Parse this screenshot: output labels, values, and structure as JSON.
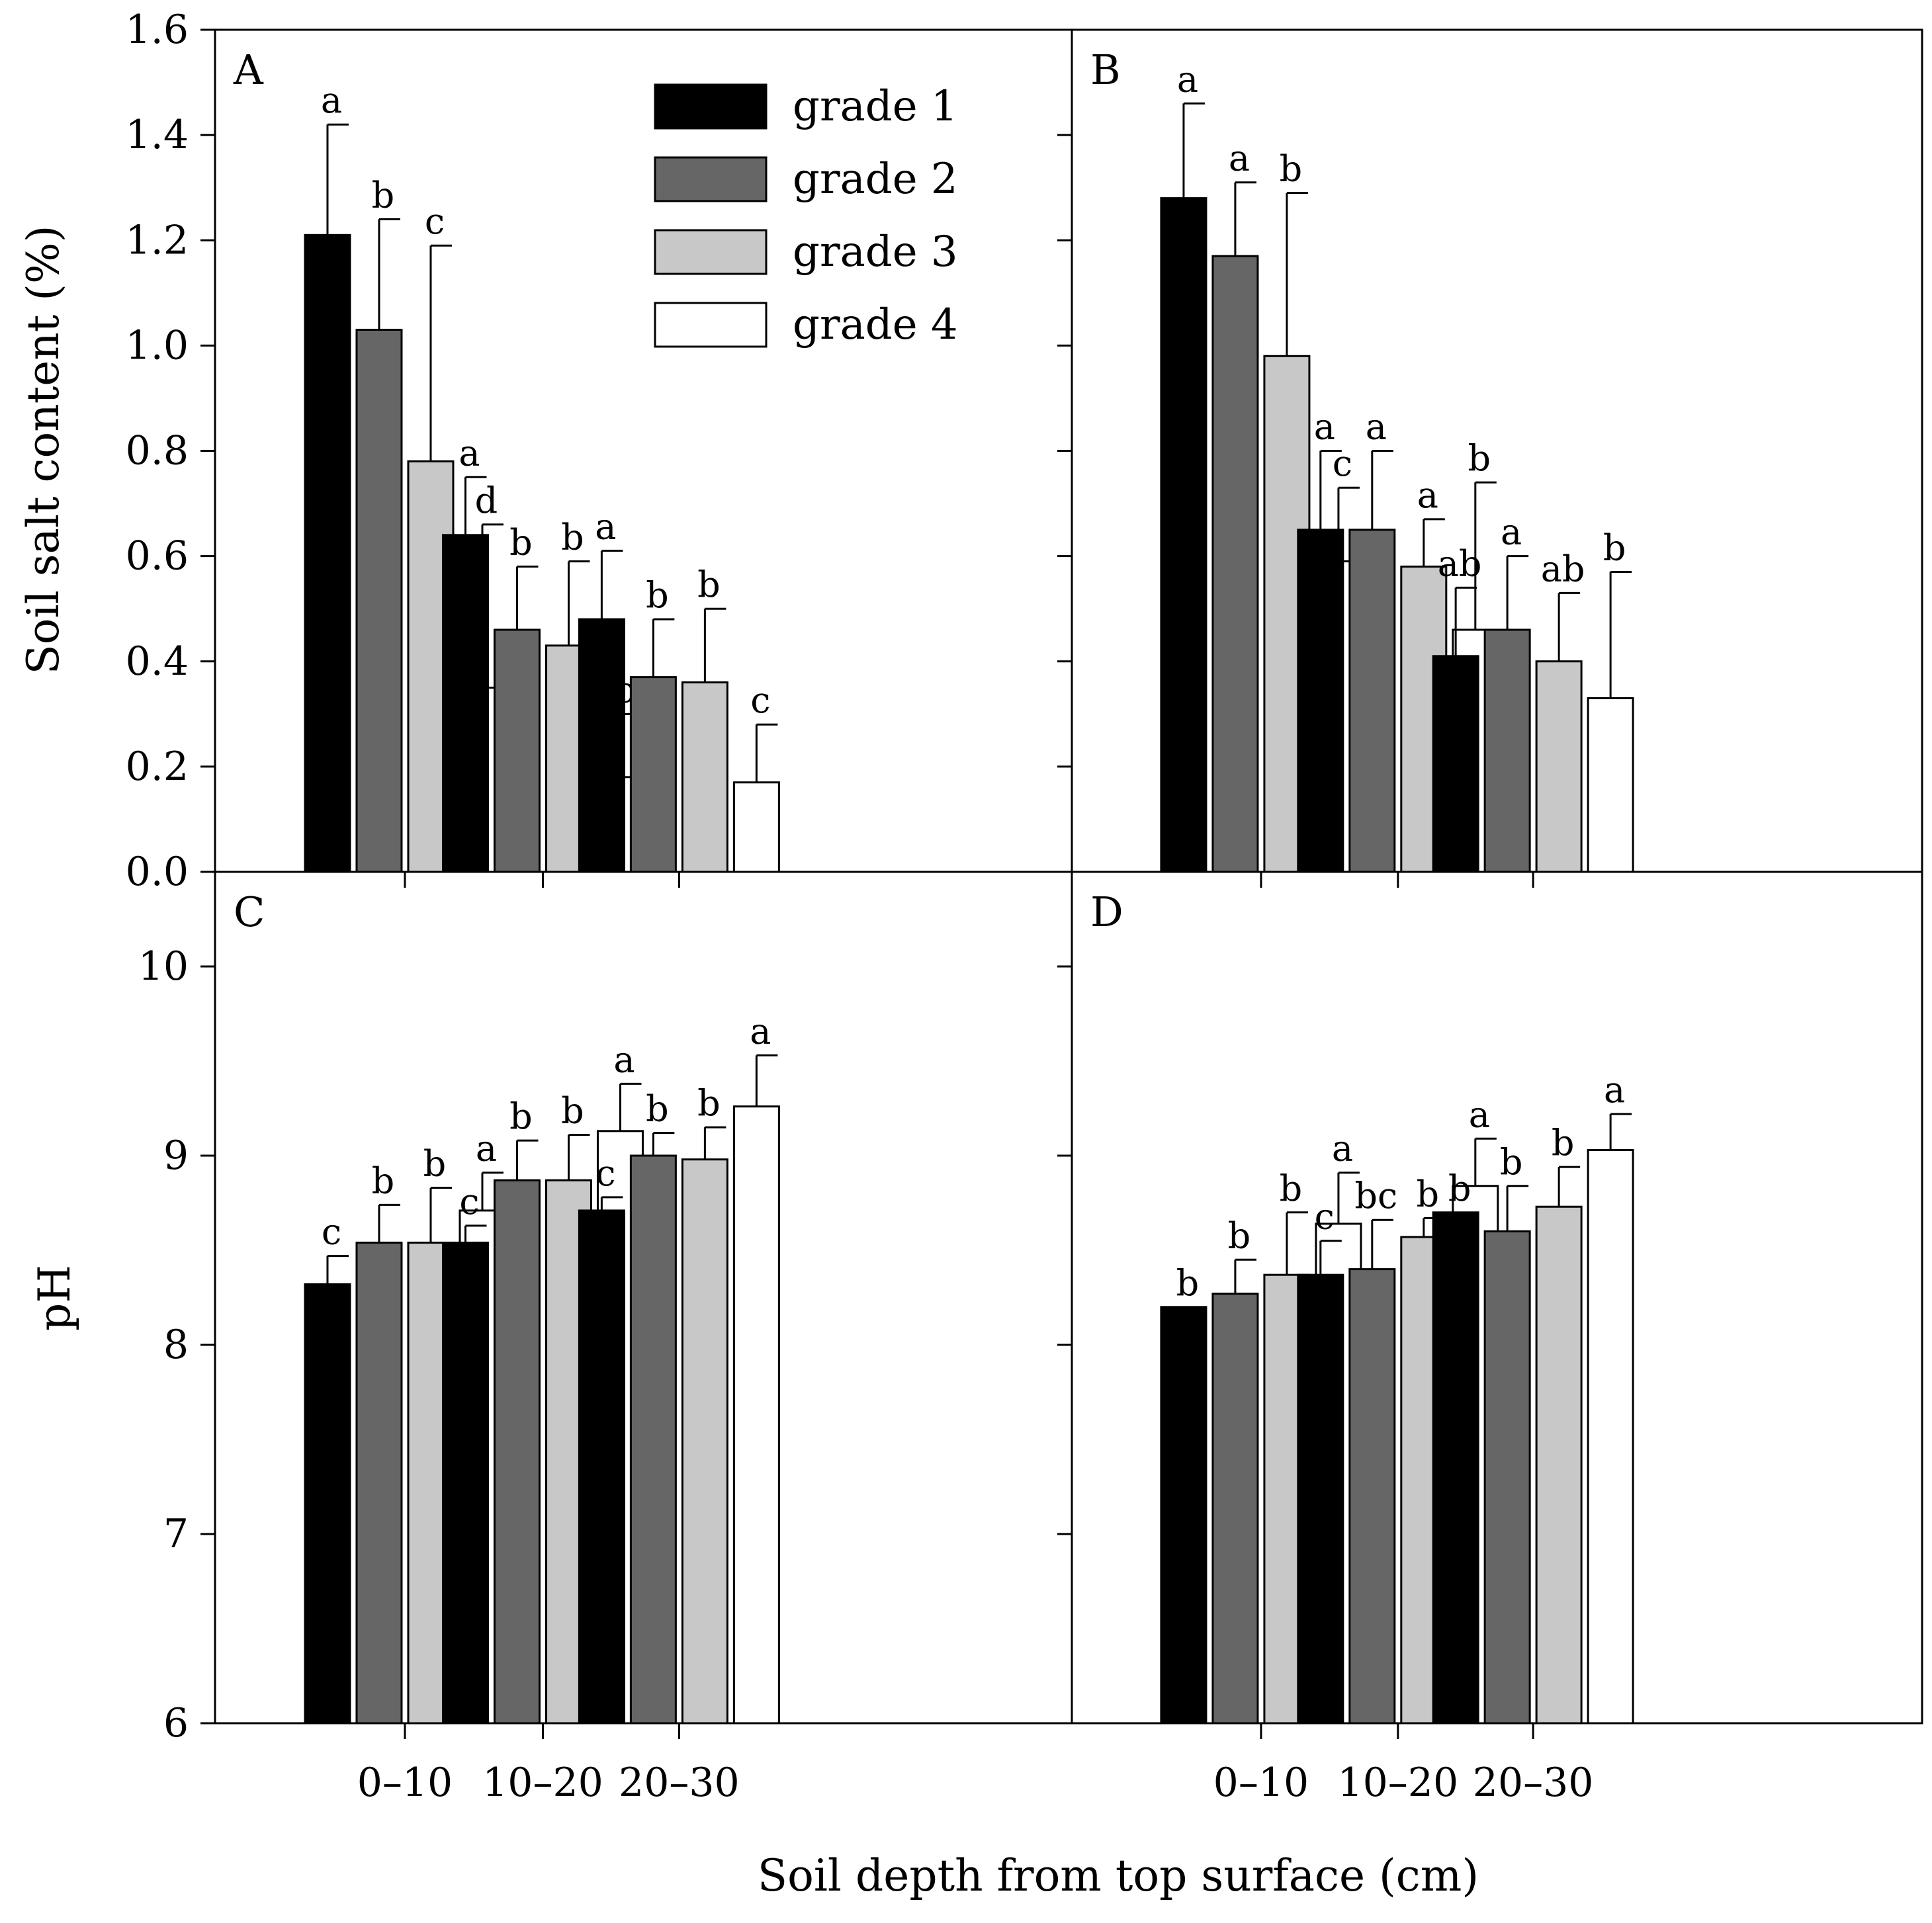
{
  "colors": {
    "grade 1": "#000000",
    "grade 2": "#666666",
    "grade 3": "#c8c8c8",
    "grade 4": "#ffffff"
  },
  "legend": {
    "items": [
      "grade 1",
      "grade 2",
      "grade 3",
      "grade 4"
    ],
    "placement": "panel A, top-center"
  },
  "axes": {
    "x_title": "Soil depth from top surface (cm)",
    "y_title_top": "Soil salt content (%)",
    "y_title_bottom": "pH"
  },
  "chart_data": [
    {
      "panel": "A",
      "type": "bar",
      "categories": [
        "0–10",
        "10–20",
        "20–30"
      ],
      "ylim": [
        0,
        1.6
      ],
      "yticks": [
        "0.0",
        "0.2",
        "0.4",
        "0.6",
        "0.8",
        "1.0",
        "1.2",
        "1.4",
        "1.6"
      ],
      "series": [
        {
          "name": "grade 1",
          "values": [
            1.21,
            0.64,
            0.48
          ],
          "errors": [
            0.21,
            0.11,
            0.13
          ],
          "labels": [
            "a",
            "a",
            "a"
          ]
        },
        {
          "name": "grade 2",
          "values": [
            1.03,
            0.46,
            0.37
          ],
          "errors": [
            0.21,
            0.12,
            0.11
          ],
          "labels": [
            "b",
            "b",
            "b"
          ]
        },
        {
          "name": "grade 3",
          "values": [
            0.78,
            0.43,
            0.36
          ],
          "errors": [
            0.41,
            0.16,
            0.14
          ],
          "labels": [
            "c",
            "b",
            "b"
          ]
        },
        {
          "name": "grade 4",
          "values": [
            0.35,
            0.18,
            0.17
          ],
          "errors": [
            0.31,
            0.12,
            0.11
          ],
          "labels": [
            "d",
            "c",
            "c"
          ]
        }
      ]
    },
    {
      "panel": "B",
      "type": "bar",
      "categories": [
        "0–10",
        "10–20",
        "20–30"
      ],
      "ylim": [
        0,
        1.6
      ],
      "series": [
        {
          "name": "grade 1",
          "values": [
            1.28,
            0.65,
            0.41
          ],
          "errors": [
            0.18,
            0.15,
            0.13
          ],
          "labels": [
            "a",
            "a",
            "ab"
          ]
        },
        {
          "name": "grade 2",
          "values": [
            1.17,
            0.65,
            0.46
          ],
          "errors": [
            0.14,
            0.15,
            0.14
          ],
          "labels": [
            "a",
            "a",
            "a"
          ]
        },
        {
          "name": "grade 3",
          "values": [
            0.98,
            0.58,
            0.4
          ],
          "errors": [
            0.31,
            0.09,
            0.13
          ],
          "labels": [
            "b",
            "a",
            "ab"
          ]
        },
        {
          "name": "grade 4",
          "values": [
            0.59,
            0.46,
            0.33
          ],
          "errors": [
            0.14,
            0.28,
            0.24
          ],
          "labels": [
            "c",
            "b",
            "b"
          ]
        }
      ]
    },
    {
      "panel": "C",
      "type": "bar",
      "categories": [
        "0–10",
        "10–20",
        "20–30"
      ],
      "ylim": [
        6,
        10.5
      ],
      "yticks": [
        "6",
        "7",
        "8",
        "9",
        "10"
      ],
      "series": [
        {
          "name": "grade 1",
          "values": [
            8.32,
            8.54,
            8.71
          ],
          "errors": [
            0.15,
            0.09,
            0.07
          ],
          "labels": [
            "c",
            "c",
            "c"
          ]
        },
        {
          "name": "grade 2",
          "values": [
            8.54,
            8.87,
            9.0
          ],
          "errors": [
            0.2,
            0.21,
            0.12
          ],
          "labels": [
            "b",
            "b",
            "b"
          ]
        },
        {
          "name": "grade 3",
          "values": [
            8.54,
            8.87,
            8.98
          ],
          "errors": [
            0.29,
            0.24,
            0.17
          ],
          "labels": [
            "b",
            "b",
            "b"
          ]
        },
        {
          "name": "grade 4",
          "values": [
            8.71,
            9.13,
            9.26
          ],
          "errors": [
            0.2,
            0.25,
            0.27
          ],
          "labels": [
            "a",
            "a",
            "a"
          ]
        }
      ]
    },
    {
      "panel": "D",
      "type": "bar",
      "categories": [
        "0–10",
        "10–20",
        "20–30"
      ],
      "ylim": [
        6,
        10.5
      ],
      "series": [
        {
          "name": "grade 1",
          "values": [
            8.2,
            8.37,
            8.7
          ],
          "errors": [
            0.0,
            0.18,
            0.0
          ],
          "labels": [
            "b",
            "c",
            "b"
          ]
        },
        {
          "name": "grade 2",
          "values": [
            8.27,
            8.4,
            8.6
          ],
          "errors": [
            0.18,
            0.26,
            0.24
          ],
          "labels": [
            "b",
            "bc",
            "b"
          ]
        },
        {
          "name": "grade 3",
          "values": [
            8.37,
            8.57,
            8.73
          ],
          "errors": [
            0.33,
            0.1,
            0.21
          ],
          "labels": [
            "b",
            "b",
            "b"
          ]
        },
        {
          "name": "grade 4",
          "values": [
            8.64,
            8.84,
            9.03
          ],
          "errors": [
            0.27,
            0.25,
            0.19
          ],
          "labels": [
            "a",
            "a",
            "a"
          ]
        }
      ]
    }
  ]
}
